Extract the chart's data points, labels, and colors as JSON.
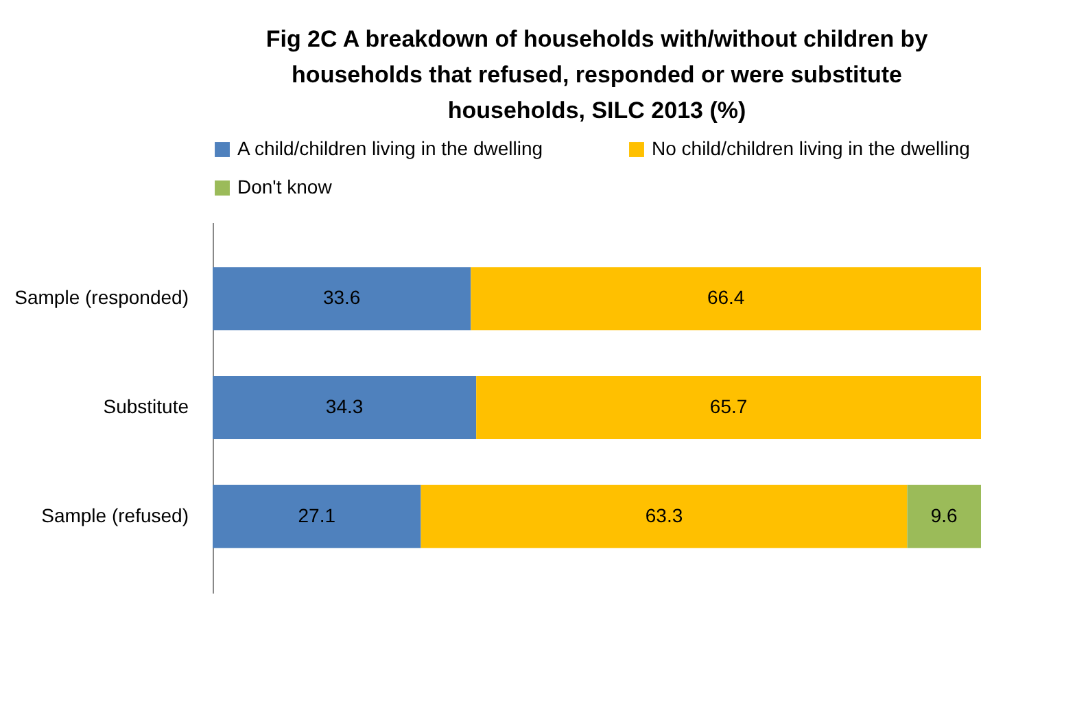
{
  "chart_data": {
    "type": "bar",
    "orientation": "horizontal",
    "stacked": true,
    "data_labels": true,
    "legend": "top",
    "title": "Fig 2C A breakdown of households with/without children by households that refused, responded or were substitute households, SILC 2013 (%)",
    "categories": [
      "Sample (responded)",
      "Substitute",
      "Sample (refused)"
    ],
    "series": [
      {
        "name": "A child/children living in the dwelling",
        "color": "#4f81bd",
        "values": [
          33.6,
          34.3,
          27.1
        ]
      },
      {
        "name": "No child/children living in the dwelling",
        "color": "#ffc000",
        "values": [
          66.4,
          65.7,
          63.3
        ]
      },
      {
        "name": "Don't know",
        "color": "#9bbb59",
        "values": [
          null,
          null,
          9.6
        ]
      }
    ]
  }
}
